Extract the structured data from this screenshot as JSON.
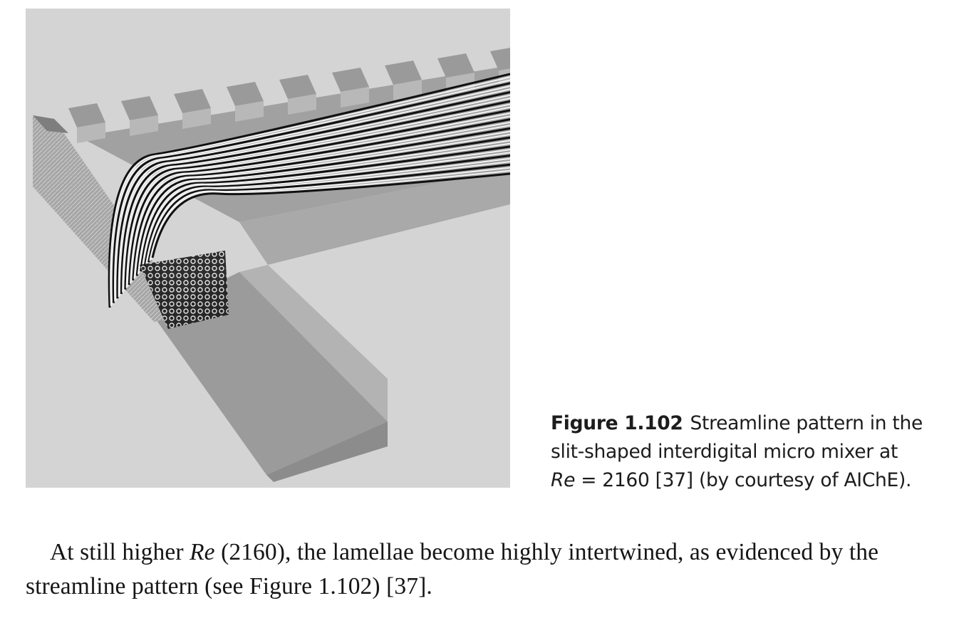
{
  "figure": {
    "label": "Figure 1.102",
    "caption_text_1": "Streamline pattern in the slit-shaped interdigital micro mixer at",
    "caption_symbol": "Re",
    "caption_text_2": " = 2160 [37] (by courtesy of AIChE)."
  },
  "body": {
    "text_1": "At still higher ",
    "symbol": "Re",
    "text_2": " (2160), the lamellae become highly intertwined, as evidenced by the streamline pattern (see Figure 1.102) [37]."
  },
  "colors": {
    "figure_background": "#d4d4d4",
    "channel_top": "#9c9c9c",
    "channel_side": "#8a8a8a",
    "streamline_dark": "#111111",
    "streamline_light": "#f2f2f2"
  }
}
